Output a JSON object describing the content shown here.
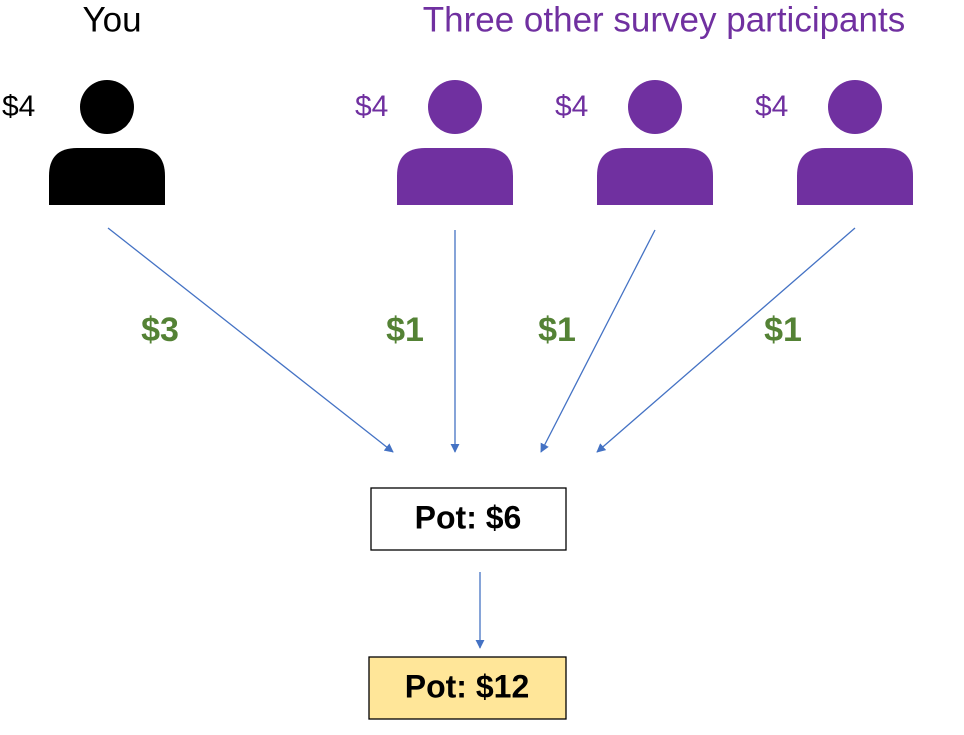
{
  "you": {
    "heading": "You",
    "amount": "$4",
    "contribution": "$3"
  },
  "others": {
    "heading": "Three other survey participants",
    "participants": [
      {
        "amount": "$4",
        "contribution": "$1"
      },
      {
        "amount": "$4",
        "contribution": "$1"
      },
      {
        "amount": "$4",
        "contribution": "$1"
      }
    ]
  },
  "pot": "Pot: $6",
  "multiplied_pot": "Pot: $12"
}
